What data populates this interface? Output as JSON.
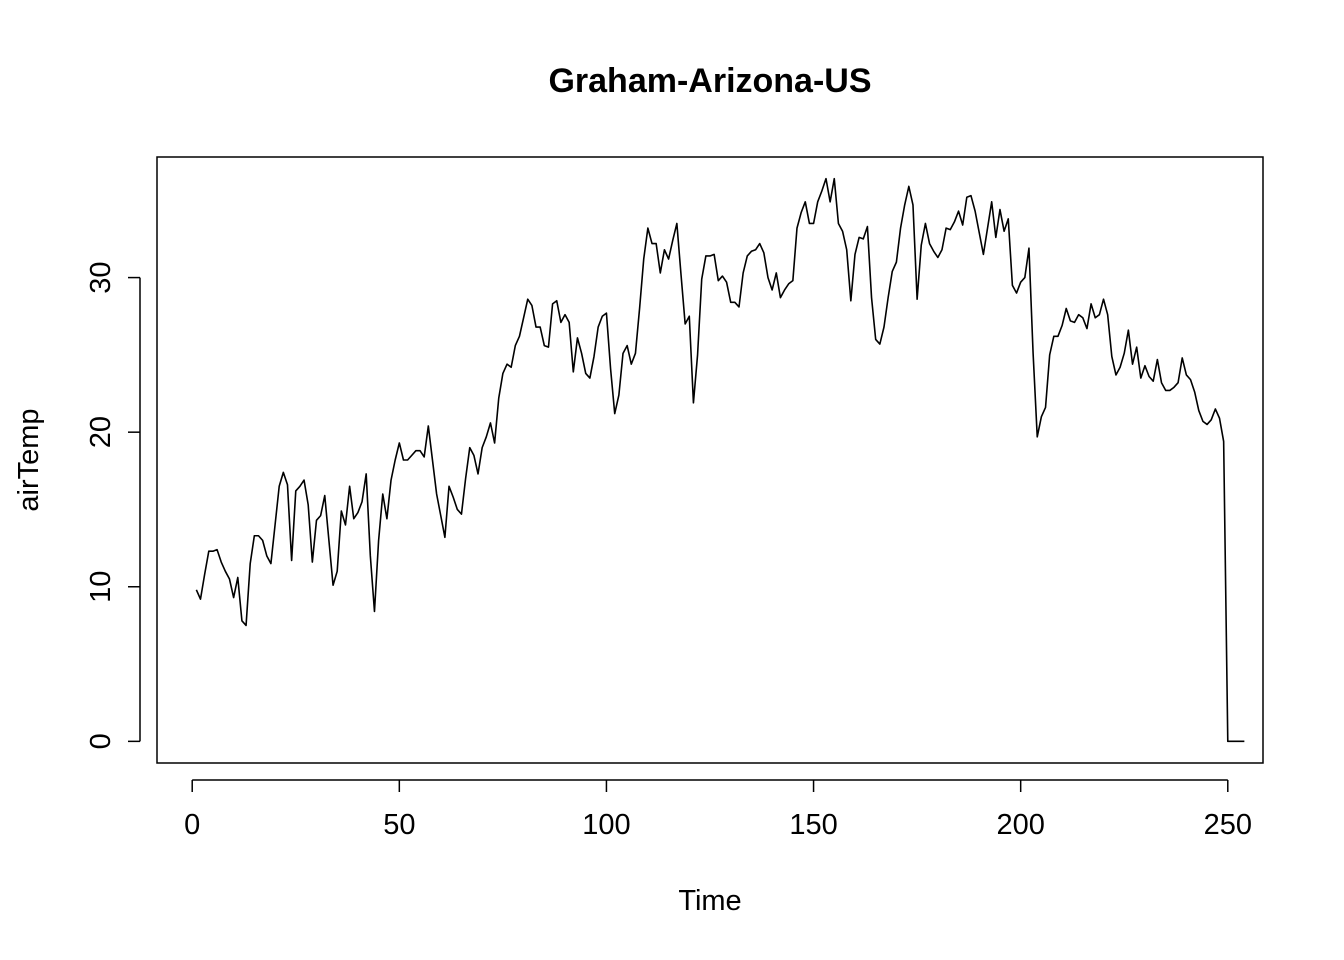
{
  "chart_data": {
    "type": "line",
    "title": "Graham-Arizona-US",
    "xlabel": "Time",
    "ylabel": "airTemp",
    "xlim": [
      -8.5,
      258.5
    ],
    "ylim": [
      -1.4,
      37.8
    ],
    "xticks": [
      0,
      50,
      100,
      150,
      200,
      250
    ],
    "yticks": [
      0,
      10,
      20,
      30
    ],
    "grid": false,
    "series": [
      {
        "values": [
          9.8,
          9.2,
          10.8,
          12.3,
          12.3,
          12.4,
          11.6,
          11.0,
          10.5,
          9.3,
          10.6,
          7.8,
          7.5,
          11.5,
          13.3,
          13.3,
          13.0,
          12.0,
          11.5,
          14.0,
          16.5,
          17.4,
          16.6,
          11.7,
          16.2,
          16.5,
          16.9,
          15.3,
          11.6,
          14.3,
          14.6,
          15.9,
          13.0,
          10.1,
          11.0,
          14.9,
          14.0,
          16.5,
          14.4,
          14.8,
          15.5,
          17.3,
          12.0,
          8.4,
          13.0,
          16.0,
          14.4,
          16.9,
          18.2,
          19.3,
          18.2,
          18.2,
          18.5,
          18.8,
          18.8,
          18.4,
          20.4,
          18.2,
          16.0,
          14.6,
          13.2,
          16.5,
          15.8,
          15.0,
          14.7,
          17.0,
          19.0,
          18.5,
          17.3,
          19.0,
          19.7,
          20.6,
          19.3,
          22.2,
          23.8,
          24.4,
          24.2,
          25.6,
          26.2,
          27.4,
          28.6,
          28.2,
          26.8,
          26.8,
          25.6,
          25.5,
          28.3,
          28.5,
          27.1,
          27.6,
          27.1,
          23.9,
          26.1,
          25.1,
          23.8,
          23.5,
          24.9,
          26.8,
          27.5,
          27.7,
          24.1,
          21.2,
          22.4,
          25.1,
          25.6,
          24.4,
          25.1,
          28.0,
          31.2,
          33.2,
          32.2,
          32.2,
          30.3,
          31.8,
          31.2,
          32.4,
          33.5,
          30.2,
          27.0,
          27.5,
          21.9,
          25.0,
          29.9,
          31.4,
          31.4,
          31.5,
          29.8,
          30.1,
          29.7,
          28.4,
          28.4,
          28.1,
          30.3,
          31.4,
          31.7,
          31.8,
          32.2,
          31.6,
          30.0,
          29.2,
          30.3,
          28.7,
          29.2,
          29.6,
          29.8,
          33.2,
          34.2,
          34.9,
          33.5,
          33.5,
          34.9,
          35.6,
          36.4,
          34.9,
          36.4,
          33.5,
          33.0,
          31.8,
          28.5,
          31.5,
          32.6,
          32.5,
          33.3,
          28.7,
          26.0,
          25.7,
          26.8,
          28.7,
          30.4,
          31.0,
          33.2,
          34.7,
          35.9,
          34.7,
          28.6,
          32.1,
          33.5,
          32.2,
          31.7,
          31.3,
          31.8,
          33.2,
          33.1,
          33.6,
          34.3,
          33.4,
          35.2,
          35.3,
          34.3,
          32.9,
          31.5,
          33.2,
          34.9,
          32.6,
          34.4,
          33.0,
          33.8,
          29.5,
          29.0,
          29.7,
          30.0,
          31.9,
          25.1,
          19.7,
          21.0,
          21.6,
          25.0,
          26.2,
          26.2,
          26.9,
          28.0,
          27.2,
          27.1,
          27.6,
          27.4,
          26.7,
          28.3,
          27.4,
          27.6,
          28.6,
          27.6,
          24.9,
          23.7,
          24.2,
          25.1,
          26.6,
          24.4,
          25.5,
          23.5,
          24.3,
          23.6,
          23.3,
          24.7,
          23.2,
          22.7,
          22.7,
          22.9,
          23.2,
          24.8,
          23.7,
          23.4,
          22.6,
          21.4,
          20.7,
          20.5,
          20.8,
          21.5,
          20.9,
          19.4,
          0.0,
          0.0,
          0.0,
          0.0,
          0.0
        ],
        "x_start": 1
      }
    ]
  }
}
